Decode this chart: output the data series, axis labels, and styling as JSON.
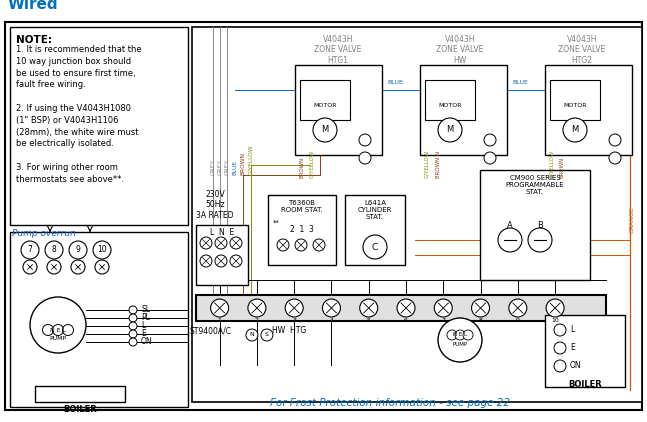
{
  "title": "Wired",
  "title_color": "#0070C0",
  "bg_color": "#ffffff",
  "note_header": "NOTE:",
  "note_lines": "1. It is recommended that the\n10 way junction box should\nbe used to ensure first time,\nfault free wiring.\n\n2. If using the V4043H1080\n(1\" BSP) or V4043H1106\n(28mm), the white wire must\nbe electrically isolated.\n\n3. For wiring other room\nthermostats see above**.",
  "pump_overrun_label": "Pump overrun",
  "frost_label": "For Frost Protection information - see page 22",
  "frost_color": "#0070C0",
  "zone_label_color": "#808080",
  "zv1_label": "V4043H\nZONE VALVE\nHTG1",
  "zv2_label": "V4043H\nZONE VALVE\nHW",
  "zv3_label": "V4043H\nZONE VALVE\nHTG2",
  "power_label": "230V\n50Hz\n3A RATED",
  "grey": "#888888",
  "blue": "#1060C0",
  "brown": "#8B4010",
  "gyellow": "#8B8B00",
  "orange": "#CC5500",
  "black": "#000000"
}
